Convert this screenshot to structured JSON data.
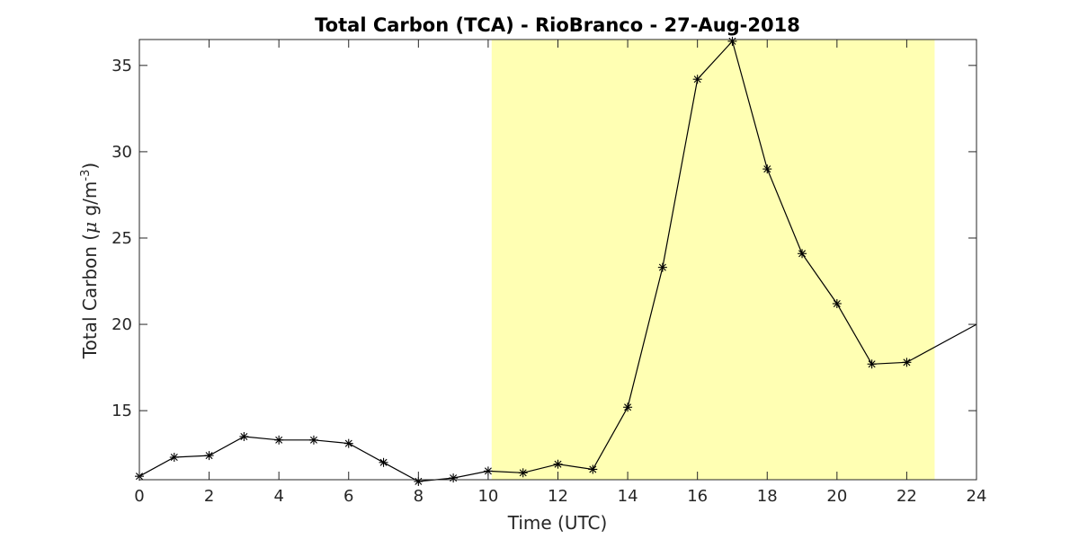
{
  "chart_data": {
    "type": "line",
    "title": "Total Carbon (TCA) - RioBranco - 27-Aug-2018",
    "xlabel": "Time (UTC)",
    "ylabel_prefix": "Total Carbon (",
    "ylabel_mu": "μ",
    "ylabel_unit": " g/m",
    "ylabel_exp": "-3",
    "ylabel_suffix": ")",
    "xlim": [
      0,
      24
    ],
    "ylim": [
      11,
      36.5
    ],
    "xticks": [
      0,
      2,
      4,
      6,
      8,
      10,
      12,
      14,
      16,
      18,
      20,
      22,
      24
    ],
    "yticks": [
      15,
      20,
      25,
      30,
      35
    ],
    "grid": false,
    "highlight": {
      "x_start": 10.1,
      "x_end": 22.8,
      "color": "#ffffb3"
    },
    "line_color": "#000000",
    "marker": "asterisk",
    "series": [
      {
        "x": [
          0,
          1,
          2,
          3,
          4,
          5,
          6,
          7,
          8,
          9,
          10,
          11,
          12,
          13,
          14,
          15,
          16,
          17,
          18,
          19,
          20,
          21,
          22
        ],
        "y": [
          11.2,
          12.3,
          12.4,
          13.5,
          13.3,
          13.3,
          13.1,
          12.0,
          10.9,
          11.1,
          11.5,
          11.4,
          11.9,
          11.6,
          15.2,
          23.3,
          34.2,
          36.4,
          29.0,
          24.1,
          21.2,
          17.7,
          17.8
        ]
      }
    ],
    "trail_to": {
      "x": 24,
      "y": 20.0
    }
  }
}
